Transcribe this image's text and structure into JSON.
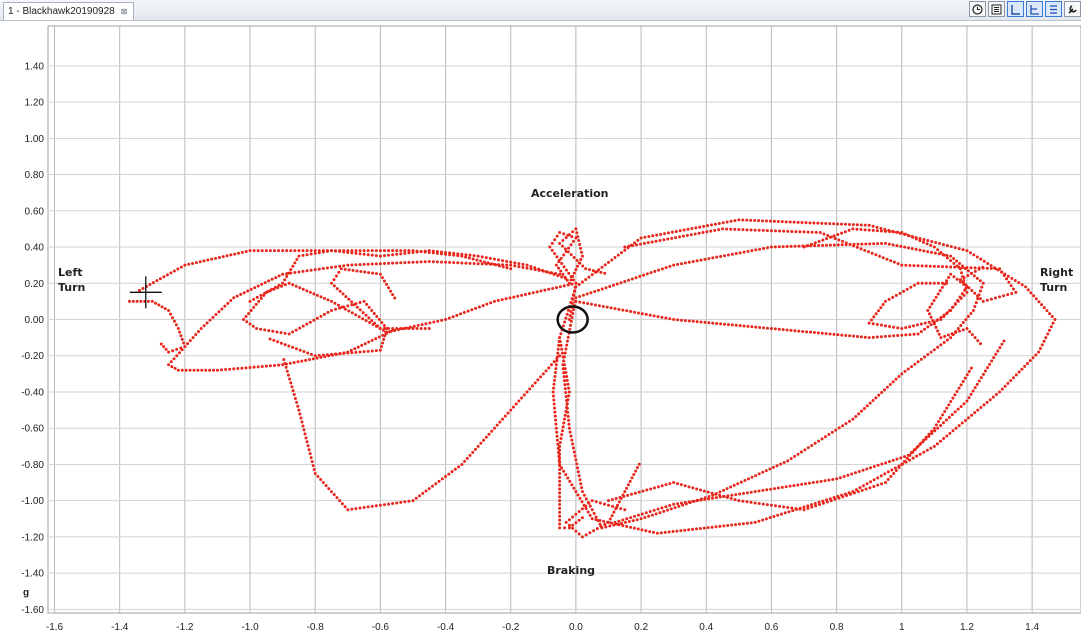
{
  "window": {
    "tab_title": "1 - Blackhawk20190928",
    "tab_pin": "⊠"
  },
  "toolbar": [
    {
      "name": "clock-icon"
    },
    {
      "name": "fit-icon"
    },
    {
      "name": "layout-single-icon",
      "active": true
    },
    {
      "name": "layout-stacked-icon",
      "active": true
    },
    {
      "name": "layout-list-icon",
      "active": true
    },
    {
      "name": "settings-icon"
    }
  ],
  "annotations": {
    "left_line1": "Left",
    "left_line2": "Turn",
    "right_line1": "Right",
    "right_line2": "Turn",
    "top": "Acceleration",
    "bottom": "Braking"
  },
  "chart_data": {
    "type": "scatter",
    "title": "",
    "xlabel": "",
    "ylabel": "g",
    "xlim": [
      -1.62,
      1.55
    ],
    "ylim": [
      -1.62,
      1.62
    ],
    "grid": true,
    "x_ticks": [
      -1.6,
      -1.4,
      -1.2,
      -1.0,
      -0.8,
      -0.6,
      -0.4,
      -0.2,
      0.0,
      0.2,
      0.4,
      0.6,
      0.8,
      1.0,
      1.2,
      1.4
    ],
    "x_tick_labels": [
      "-1.6",
      "-1.4",
      "-1.2",
      "-1.0",
      "-0.8",
      "-0.6",
      "-0.4",
      "-0.2",
      "0.0",
      "0.2",
      "0.4",
      "0.6",
      "0.8",
      "1",
      "1.2",
      "1.4"
    ],
    "y_ticks": [
      1.4,
      1.2,
      1.0,
      0.8,
      0.6,
      0.4,
      0.2,
      0.0,
      -0.2,
      -0.4,
      -0.6,
      -0.8,
      -1.0,
      -1.2,
      -1.4,
      -1.6
    ],
    "y_tick_labels": [
      "1.40",
      "1.20",
      "1.00",
      "0.80",
      "0.60",
      "0.40",
      "0.20",
      "0.00",
      "-0.20",
      "-0.40",
      "-0.60",
      "-0.80",
      "-1.00",
      "-1.20",
      "-1.40",
      "-1.60"
    ],
    "point_color": "#e8261c",
    "marker_color": "#111111",
    "series": [
      {
        "points": [
          [
            0.0,
            0.18
          ],
          [
            0.2,
            0.45
          ],
          [
            0.5,
            0.55
          ],
          [
            0.9,
            0.52
          ],
          [
            1.2,
            0.38
          ],
          [
            1.38,
            0.18
          ],
          [
            1.47,
            0.0
          ],
          [
            1.42,
            -0.18
          ],
          [
            1.3,
            -0.4
          ],
          [
            1.1,
            -0.7
          ],
          [
            0.85,
            -0.95
          ],
          [
            0.55,
            -1.12
          ],
          [
            0.25,
            -1.18
          ],
          [
            0.05,
            -1.1
          ],
          [
            -0.05,
            -0.8
          ],
          [
            -0.07,
            -0.4
          ],
          [
            -0.05,
            -0.1
          ],
          [
            0.0,
            0.18
          ]
        ]
      },
      {
        "points": [
          [
            0.0,
            0.12
          ],
          [
            0.3,
            0.3
          ],
          [
            0.6,
            0.4
          ],
          [
            0.95,
            0.42
          ],
          [
            1.15,
            0.35
          ],
          [
            1.25,
            0.2
          ],
          [
            1.22,
            0.05
          ],
          [
            1.15,
            -0.1
          ],
          [
            1.0,
            -0.3
          ],
          [
            0.85,
            -0.55
          ],
          [
            0.65,
            -0.78
          ],
          [
            0.42,
            -0.97
          ],
          [
            0.2,
            -1.1
          ],
          [
            0.08,
            -1.15
          ],
          [
            0.02,
            -0.95
          ],
          [
            -0.02,
            -0.6
          ],
          [
            -0.04,
            -0.25
          ],
          [
            0.0,
            0.12
          ]
        ]
      },
      {
        "points": [
          [
            0.0,
            0.1
          ],
          [
            0.3,
            0.0
          ],
          [
            0.6,
            -0.05
          ],
          [
            0.9,
            -0.1
          ],
          [
            1.05,
            -0.08
          ],
          [
            1.15,
            0.05
          ],
          [
            1.2,
            0.18
          ],
          [
            1.15,
            0.25
          ],
          [
            1.08,
            0.05
          ],
          [
            1.12,
            -0.1
          ],
          [
            1.2,
            -0.05
          ],
          [
            1.25,
            -0.15
          ]
        ]
      },
      {
        "points": [
          [
            0.7,
            0.4
          ],
          [
            0.85,
            0.5
          ],
          [
            1.0,
            0.48
          ],
          [
            1.1,
            0.4
          ],
          [
            1.18,
            0.28
          ],
          [
            1.2,
            0.15
          ],
          [
            1.12,
            0.0
          ],
          [
            1.0,
            -0.05
          ],
          [
            0.9,
            -0.02
          ],
          [
            0.95,
            0.1
          ],
          [
            1.05,
            0.2
          ],
          [
            1.15,
            0.2
          ]
        ]
      },
      {
        "points": [
          [
            0.15,
            0.4
          ],
          [
            0.45,
            0.5
          ],
          [
            0.75,
            0.48
          ],
          [
            1.0,
            0.3
          ],
          [
            1.3,
            0.28
          ],
          [
            1.35,
            0.15
          ],
          [
            1.25,
            0.1
          ],
          [
            1.18,
            0.22
          ],
          [
            1.26,
            0.3
          ]
        ]
      },
      {
        "points": [
          [
            0.1,
            -1.0
          ],
          [
            0.3,
            -0.9
          ],
          [
            0.5,
            -1.0
          ],
          [
            0.7,
            -1.05
          ],
          [
            0.95,
            -0.9
          ],
          [
            1.1,
            -0.6
          ],
          [
            1.22,
            -0.25
          ]
        ]
      },
      {
        "points": [
          [
            0.12,
            -1.12
          ],
          [
            0.3,
            -1.02
          ],
          [
            0.55,
            -0.95
          ],
          [
            0.8,
            -0.88
          ],
          [
            1.02,
            -0.75
          ],
          [
            1.2,
            -0.45
          ],
          [
            1.32,
            -0.1
          ]
        ]
      },
      {
        "points": [
          [
            -0.02,
            0.0
          ],
          [
            0.0,
            0.2
          ],
          [
            -0.08,
            0.4
          ],
          [
            -0.05,
            0.48
          ],
          [
            0.0,
            0.45
          ],
          [
            -0.06,
            0.3
          ],
          [
            -0.02,
            0.2
          ],
          [
            0.02,
            0.35
          ],
          [
            0.0,
            0.5
          ],
          [
            -0.05,
            0.42
          ],
          [
            0.03,
            0.28
          ],
          [
            0.1,
            0.25
          ]
        ]
      },
      {
        "points": [
          [
            -0.05,
            -0.1
          ],
          [
            -0.02,
            -0.4
          ],
          [
            -0.05,
            -0.7
          ],
          [
            -0.05,
            -1.0
          ],
          [
            -0.05,
            -1.15
          ],
          [
            -0.02,
            -1.15
          ],
          [
            0.03,
            -1.08
          ]
        ]
      },
      {
        "points": [
          [
            -0.2,
            0.28
          ],
          [
            -0.35,
            0.35
          ],
          [
            -0.5,
            0.38
          ],
          [
            -0.75,
            0.38
          ],
          [
            -1.0,
            0.38
          ],
          [
            -1.2,
            0.3
          ],
          [
            -1.35,
            0.15
          ]
        ]
      },
      {
        "points": [
          [
            0.0,
            0.2
          ],
          [
            -0.25,
            0.1
          ],
          [
            -0.4,
            0.0
          ],
          [
            -0.58,
            -0.07
          ],
          [
            -0.75,
            0.1
          ],
          [
            -0.88,
            0.2
          ],
          [
            -0.95,
            0.15
          ],
          [
            -1.02,
            0.0
          ],
          [
            -0.98,
            -0.05
          ],
          [
            -0.88,
            -0.08
          ],
          [
            -0.75,
            0.05
          ],
          [
            -0.65,
            0.1
          ],
          [
            -0.58,
            -0.05
          ],
          [
            -0.6,
            -0.17
          ],
          [
            -0.8,
            -0.2
          ],
          [
            -0.95,
            -0.1
          ]
        ]
      },
      {
        "points": [
          [
            -0.05,
            0.25
          ],
          [
            -0.2,
            0.3
          ],
          [
            -0.45,
            0.32
          ],
          [
            -0.7,
            0.3
          ],
          [
            -0.9,
            0.25
          ],
          [
            -1.05,
            0.12
          ],
          [
            -1.15,
            -0.05
          ],
          [
            -1.2,
            -0.15
          ],
          [
            -1.25,
            -0.25
          ],
          [
            -1.22,
            -0.28
          ],
          [
            -1.1,
            -0.28
          ],
          [
            -0.9,
            -0.25
          ],
          [
            -0.7,
            -0.18
          ],
          [
            -0.55,
            -0.05
          ]
        ]
      },
      {
        "points": [
          [
            -1.37,
            0.1
          ],
          [
            -1.3,
            0.1
          ],
          [
            -1.25,
            0.05
          ],
          [
            -1.22,
            -0.05
          ],
          [
            -1.2,
            -0.15
          ],
          [
            -1.25,
            -0.18
          ],
          [
            -1.28,
            -0.12
          ]
        ]
      },
      {
        "points": [
          [
            -1.0,
            0.1
          ],
          [
            -0.9,
            0.2
          ],
          [
            -0.85,
            0.35
          ],
          [
            -0.75,
            0.38
          ],
          [
            -0.6,
            0.35
          ],
          [
            -0.45,
            0.38
          ],
          [
            -0.3,
            0.35
          ],
          [
            -0.15,
            0.3
          ],
          [
            -0.02,
            0.22
          ]
        ]
      },
      {
        "points": [
          [
            -0.05,
            -0.2
          ],
          [
            -0.2,
            -0.5
          ],
          [
            -0.35,
            -0.8
          ],
          [
            -0.5,
            -1.0
          ],
          [
            -0.7,
            -1.05
          ],
          [
            -0.8,
            -0.85
          ],
          [
            -0.85,
            -0.5
          ],
          [
            -0.9,
            -0.2
          ]
        ]
      },
      {
        "points": [
          [
            0.15,
            -1.05
          ],
          [
            0.05,
            -1.0
          ],
          [
            -0.03,
            -1.12
          ],
          [
            0.02,
            -1.2
          ],
          [
            0.1,
            -1.12
          ],
          [
            0.15,
            -0.95
          ],
          [
            0.2,
            -0.78
          ]
        ]
      },
      {
        "points": [
          [
            -0.45,
            -0.05
          ],
          [
            -0.6,
            -0.05
          ],
          [
            -0.75,
            0.2
          ],
          [
            -0.72,
            0.28
          ],
          [
            -0.6,
            0.25
          ],
          [
            -0.55,
            0.1
          ]
        ]
      }
    ],
    "circle_marker": {
      "x": -0.01,
      "y": 0.0
    },
    "crosshair": {
      "x": -1.32,
      "y": 0.15
    }
  }
}
